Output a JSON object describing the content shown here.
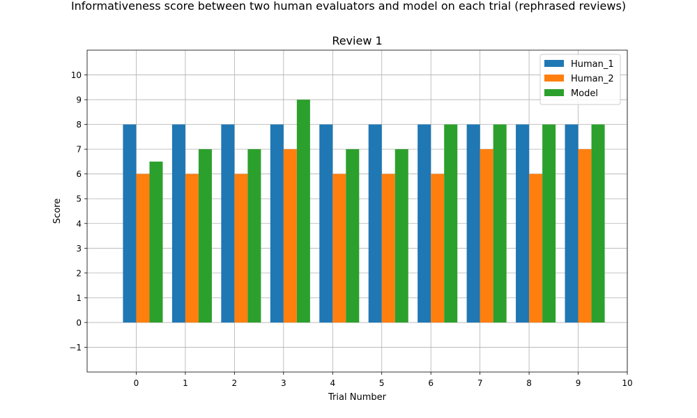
{
  "figure": {
    "suptitle": "Informativeness score between two human evaluators and model on each trial (rephrased reviews)"
  },
  "chart_data": {
    "type": "bar",
    "title": "Review 1",
    "xlabel": "Trial Number",
    "ylabel": "Score",
    "x": [
      0,
      1,
      2,
      3,
      4,
      5,
      6,
      7,
      8,
      9
    ],
    "xticks": [
      "0",
      "1",
      "2",
      "3",
      "4",
      "5",
      "6",
      "7",
      "8",
      "9",
      "10"
    ],
    "yticks": [
      "−1",
      "0",
      "1",
      "2",
      "3",
      "4",
      "5",
      "6",
      "7",
      "8",
      "9",
      "10"
    ],
    "xlim": [
      -1,
      10
    ],
    "ylim": [
      -2,
      11
    ],
    "grid": true,
    "legend_position": "top-right",
    "series": [
      {
        "name": "Human_1",
        "color": "#1f77b4",
        "values": [
          8,
          8,
          8,
          8,
          8,
          8,
          8,
          8,
          8,
          8
        ]
      },
      {
        "name": "Human_2",
        "color": "#ff7f0e",
        "values": [
          6,
          6,
          6,
          7,
          6,
          6,
          6,
          7,
          6,
          7
        ]
      },
      {
        "name": "Model",
        "color": "#2ca02c",
        "values": [
          6.5,
          7,
          7,
          9,
          7,
          7,
          8,
          8,
          8,
          8
        ]
      }
    ]
  }
}
